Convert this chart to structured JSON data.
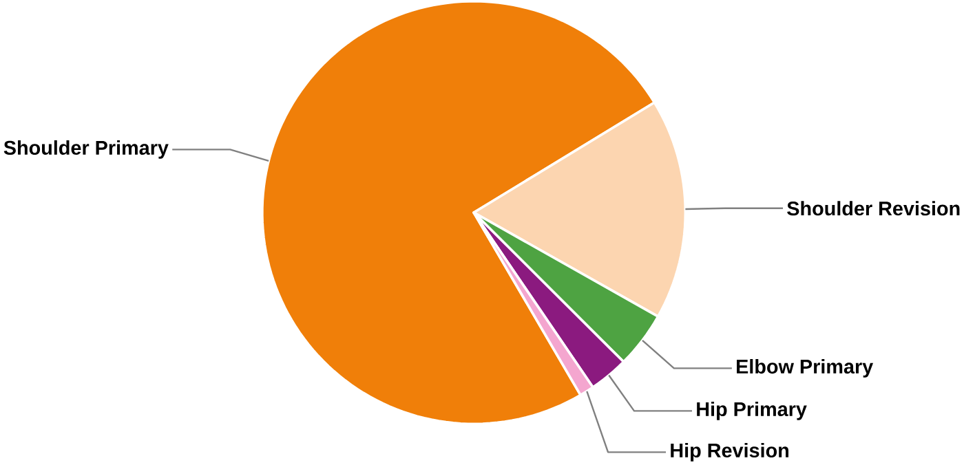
{
  "chart_data": {
    "type": "pie",
    "categories": [
      "Shoulder Primary",
      "Shoulder Revision",
      "Elbow Primary",
      "Hip Primary",
      "Hip Revision"
    ],
    "values": [
      74.7,
      16.9,
      4.3,
      3.0,
      1.1
    ],
    "colors": [
      "#f07f09",
      "#fcd5b0",
      "#4ea342",
      "#8b1a7f",
      "#f4a6cf"
    ]
  }
}
